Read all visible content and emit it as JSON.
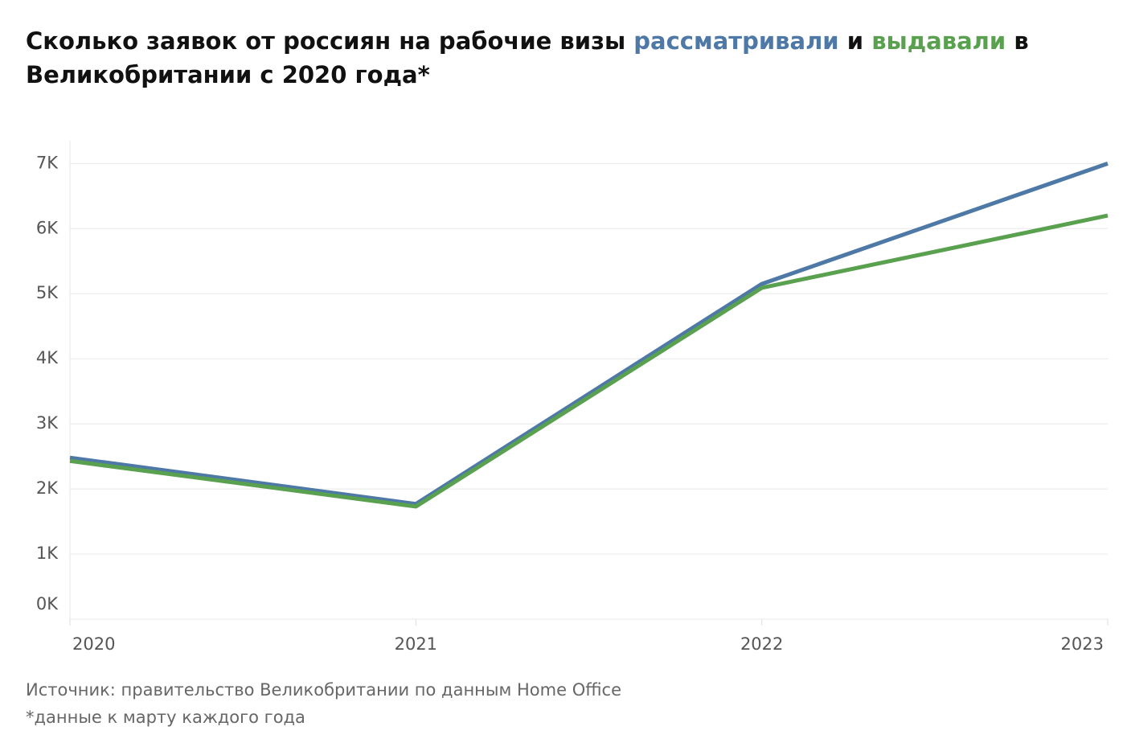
{
  "chart_data": {
    "type": "line",
    "title": [
      "Сколько заявок от россиян на рабочие визы",
      "и",
      "в Великобритании с 2020 года*"
    ],
    "categories": [
      "2020",
      "2021",
      "2022",
      "2023"
    ],
    "series": [
      {
        "name": "рассматривали",
        "color": "#4e79a7",
        "values": [
          2480,
          1770,
          5150,
          7000
        ]
      },
      {
        "name": "выдавали",
        "color": "#59a14f",
        "values": [
          2430,
          1730,
          5090,
          6200
        ]
      }
    ],
    "ylim": [
      0,
      7350
    ],
    "yticks": [
      {
        "value": 0,
        "label": "0K"
      },
      {
        "value": 1000,
        "label": "1K"
      },
      {
        "value": 2000,
        "label": "2K"
      },
      {
        "value": 3000,
        "label": "3K"
      },
      {
        "value": 4000,
        "label": "4K"
      },
      {
        "value": 5000,
        "label": "5K"
      },
      {
        "value": 6000,
        "label": "6K"
      },
      {
        "value": 7000,
        "label": "7K"
      }
    ],
    "grid": true,
    "source": "Источник: правительство Великобритании по данным Home Office",
    "note": "*данные к марту каждого года"
  }
}
